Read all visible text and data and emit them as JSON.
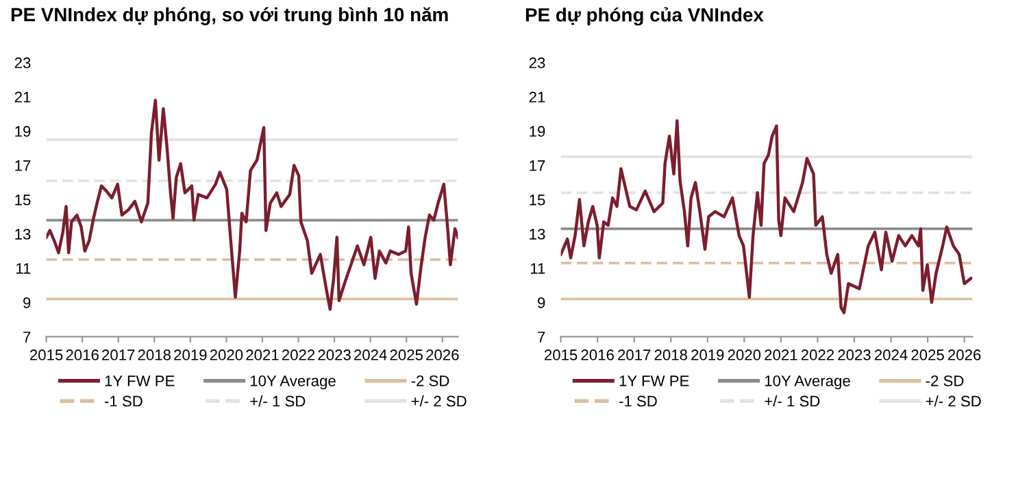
{
  "chart_data": [
    {
      "type": "line",
      "title": "PE VNIndex dự phóng, so với trung bình 10 năm",
      "xlim": [
        2015,
        2026.43
      ],
      "xticks": [
        2015,
        2016,
        2017,
        2018,
        2019,
        2020,
        2021,
        2022,
        2023,
        2024,
        2025,
        2026
      ],
      "ylim": [
        7,
        23
      ],
      "yticks": [
        7,
        9,
        11,
        13,
        15,
        17,
        19,
        21,
        23
      ],
      "grid": false,
      "legend": "bottom",
      "line_style": "solid",
      "series": [
        {
          "name": "1Y FW PE",
          "color": "#7b1e2e",
          "x": [
            2015.0,
            2015.1,
            2015.22,
            2015.34,
            2015.46,
            2015.55,
            2015.62,
            2015.7,
            2015.85,
            2015.97,
            2016.07,
            2016.19,
            2016.31,
            2016.41,
            2016.53,
            2016.67,
            2016.82,
            2016.98,
            2017.1,
            2017.28,
            2017.46,
            2017.64,
            2017.82,
            2017.92,
            2018.03,
            2018.13,
            2018.25,
            2018.35,
            2018.45,
            2018.52,
            2018.61,
            2018.73,
            2018.85,
            2019.04,
            2019.1,
            2019.22,
            2019.46,
            2019.7,
            2019.82,
            2020.01,
            2020.13,
            2020.25,
            2020.37,
            2020.43,
            2020.55,
            2020.67,
            2020.85,
            2021.04,
            2021.1,
            2021.22,
            2021.4,
            2021.52,
            2021.76,
            2021.88,
            2022.01,
            2022.07,
            2022.25,
            2022.37,
            2022.61,
            2022.79,
            2022.88,
            2022.98,
            2023.07,
            2023.13,
            2023.28,
            2023.46,
            2023.64,
            2023.82,
            2024.01,
            2024.13,
            2024.25,
            2024.43,
            2024.55,
            2024.79,
            2024.98,
            2025.06,
            2025.13,
            2025.28,
            2025.4,
            2025.52,
            2025.64,
            2025.76,
            2025.88,
            2026.04,
            2026.15,
            2026.22,
            2026.35,
            2026.43
          ],
          "values": [
            12.8,
            13.2,
            12.6,
            11.9,
            13.1,
            14.6,
            11.9,
            13.7,
            14.1,
            13.4,
            12.0,
            12.6,
            13.9,
            14.8,
            15.8,
            15.5,
            15.1,
            15.9,
            14.1,
            14.4,
            14.9,
            13.7,
            14.8,
            18.9,
            20.8,
            17.3,
            20.3,
            18.1,
            15.4,
            13.9,
            16.3,
            17.1,
            15.4,
            15.8,
            13.8,
            15.3,
            15.1,
            15.9,
            16.6,
            15.6,
            12.4,
            9.3,
            12.0,
            14.2,
            13.7,
            16.7,
            17.3,
            19.2,
            13.2,
            14.8,
            15.4,
            14.6,
            15.3,
            17.0,
            16.4,
            13.7,
            12.6,
            10.7,
            11.8,
            9.6,
            8.6,
            10.4,
            12.8,
            9.1,
            10.1,
            11.2,
            12.3,
            11.2,
            12.8,
            10.4,
            12.0,
            11.3,
            12.0,
            11.8,
            12.0,
            13.4,
            10.7,
            8.9,
            11.0,
            12.8,
            14.1,
            13.8,
            14.8,
            15.9,
            13.2,
            11.2,
            13.3,
            12.8
          ]
        },
        {
          "name": "10Y Average",
          "color": "#8c8c8c",
          "x": [
            2015,
            2026.43
          ],
          "values": [
            13.8,
            13.8
          ]
        },
        {
          "name": "-2 SD",
          "color": "#dcbf9f",
          "x": [
            2015,
            2026.43
          ],
          "values": [
            9.2,
            9.2
          ]
        },
        {
          "name": "-1 SD",
          "color": "#dcbf9f",
          "line_style": "dashed",
          "x": [
            2015,
            2026.43
          ],
          "values": [
            11.5,
            11.5
          ]
        },
        {
          "name": "+/- 1 SD",
          "color": "#e2e2e2",
          "line_style": "dashed",
          "x": [
            2015,
            2026.43
          ],
          "values": [
            16.1,
            16.1
          ]
        },
        {
          "name": "+/- 2 SD",
          "color": "#e2e2e2",
          "x": [
            2015,
            2026.43
          ],
          "values": [
            18.5,
            18.5
          ]
        }
      ]
    },
    {
      "type": "line",
      "title": "PE dự phóng của VNIndex",
      "xlim": [
        2015,
        2026.22
      ],
      "xticks": [
        2015,
        2016,
        2017,
        2018,
        2019,
        2020,
        2021,
        2022,
        2023,
        2024,
        2025,
        2026
      ],
      "ylim": [
        7,
        23
      ],
      "yticks": [
        7,
        9,
        11,
        13,
        15,
        17,
        19,
        21,
        23
      ],
      "grid": false,
      "legend": "bottom",
      "line_style": "solid",
      "series": [
        {
          "name": "1Y FW PE",
          "color": "#7b1e2e",
          "x": [
            2015.0,
            2015.1,
            2015.18,
            2015.27,
            2015.39,
            2015.51,
            2015.63,
            2015.75,
            2015.87,
            2015.99,
            2016.05,
            2016.17,
            2016.29,
            2016.41,
            2016.53,
            2016.64,
            2016.76,
            2016.88,
            2017.06,
            2017.3,
            2017.54,
            2017.78,
            2017.84,
            2017.96,
            2018.08,
            2018.17,
            2018.25,
            2018.37,
            2018.46,
            2018.55,
            2018.67,
            2018.79,
            2018.93,
            2019.03,
            2019.21,
            2019.45,
            2019.68,
            2019.86,
            2019.98,
            2020.14,
            2020.24,
            2020.36,
            2020.46,
            2020.54,
            2020.66,
            2020.76,
            2020.88,
            2020.94,
            2021.0,
            2021.11,
            2021.35,
            2021.59,
            2021.71,
            2021.89,
            2021.95,
            2022.13,
            2022.25,
            2022.37,
            2022.55,
            2022.64,
            2022.72,
            2022.84,
            2023.14,
            2023.38,
            2023.56,
            2023.74,
            2023.86,
            2024.03,
            2024.21,
            2024.39,
            2024.57,
            2024.75,
            2024.81,
            2024.87,
            2024.99,
            2025.11,
            2025.23,
            2025.41,
            2025.52,
            2025.7,
            2025.86,
            2026.0,
            2026.18
          ],
          "values": [
            11.8,
            12.3,
            12.7,
            11.6,
            12.9,
            15.0,
            12.3,
            13.7,
            14.6,
            13.5,
            11.6,
            13.7,
            13.5,
            15.1,
            14.6,
            16.8,
            15.7,
            14.6,
            14.4,
            15.5,
            14.3,
            14.8,
            17.1,
            18.7,
            16.5,
            19.6,
            16.1,
            14.3,
            12.3,
            15.1,
            16.0,
            14.3,
            12.1,
            14.0,
            14.3,
            14.0,
            15.1,
            12.9,
            12.3,
            9.3,
            12.9,
            15.4,
            13.5,
            17.1,
            17.6,
            18.7,
            19.3,
            13.8,
            12.9,
            15.1,
            14.3,
            16.0,
            17.4,
            16.5,
            13.5,
            14.0,
            11.8,
            10.7,
            11.8,
            8.7,
            8.4,
            10.1,
            9.8,
            12.3,
            13.1,
            10.9,
            13.1,
            11.4,
            12.9,
            12.3,
            12.9,
            12.3,
            13.3,
            9.7,
            11.2,
            9.0,
            10.7,
            12.3,
            13.4,
            12.3,
            11.8,
            10.1,
            10.4
          ]
        },
        {
          "name": "10Y Average",
          "color": "#8c8c8c",
          "x": [
            2015,
            2026.22
          ],
          "values": [
            13.3,
            13.3
          ]
        },
        {
          "name": "-2 SD",
          "color": "#dcbf9f",
          "x": [
            2015,
            2026.22
          ],
          "values": [
            9.2,
            9.2
          ]
        },
        {
          "name": "-1 SD",
          "color": "#dcbf9f",
          "line_style": "dashed",
          "x": [
            2015,
            2026.22
          ],
          "values": [
            11.3,
            11.3
          ]
        },
        {
          "name": "+/- 1 SD",
          "color": "#e2e2e2",
          "line_style": "dashed",
          "x": [
            2015,
            2026.22
          ],
          "values": [
            15.4,
            15.4
          ]
        },
        {
          "name": "+/- 2 SD",
          "color": "#e2e2e2",
          "x": [
            2015,
            2026.22
          ],
          "values": [
            17.5,
            17.5
          ]
        }
      ]
    }
  ]
}
